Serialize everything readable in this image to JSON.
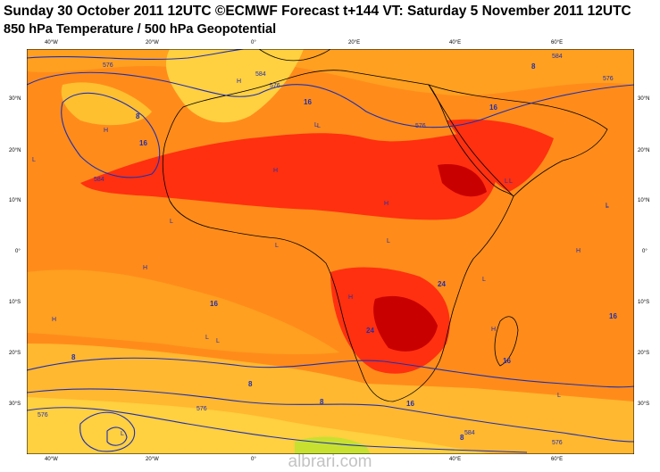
{
  "title_line1": "Sunday 30 October 2011 12UTC ©ECMWF Forecast t+144 VT: Saturday 5 November 2011 12UTC",
  "title_line2": "850 hPa Temperature / 500 hPa Geopotential",
  "lon_labels": [
    "40°W",
    "20°W",
    "0°",
    "20°E",
    "40°E",
    "60°E"
  ],
  "lat_labels_left": [
    "30°N",
    "20°N",
    "10°N",
    "0°",
    "10°S",
    "20°S",
    "30°S"
  ],
  "lat_labels_right": [
    "30°N",
    "20°N",
    "10°N",
    "0°",
    "10°S",
    "20°S",
    "30°S"
  ],
  "temperature_labels": [
    "8",
    "16",
    "16",
    "16",
    "24",
    "24",
    "16",
    "16",
    "16",
    "8",
    "8",
    "16",
    "8",
    "8",
    "8"
  ],
  "geopotential_labels": [
    "576",
    "576",
    "584",
    "576",
    "576",
    "584",
    "584",
    "576",
    "576",
    "584",
    "576"
  ],
  "pressure_centres": [
    "H",
    "L",
    "H",
    "H",
    "L",
    "H",
    "L",
    "L",
    "L",
    "L",
    "H",
    "H",
    "L",
    "H",
    "L",
    "L",
    "L",
    "H",
    "L",
    "H",
    "L",
    "L",
    "L",
    "L"
  ],
  "colors": {
    "ocean_bg": "#ff8c1a",
    "warm_light": "#ffa020",
    "warm_mid": "#ff7a10",
    "hot": "#ff3010",
    "very_hot": "#c80000",
    "cool": "#ffd040",
    "cold": "#c8e030",
    "coast": "#000000",
    "contour": "#1f2fb0"
  },
  "watermark": "albrari.com"
}
